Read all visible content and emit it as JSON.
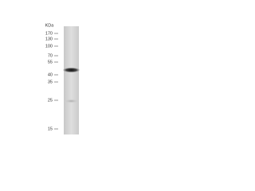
{
  "header": {
    "unit": "KDa"
  },
  "markers": [
    "170",
    "130",
    "100",
    "70",
    "55",
    "40",
    "35",
    "25",
    "15"
  ]
}
